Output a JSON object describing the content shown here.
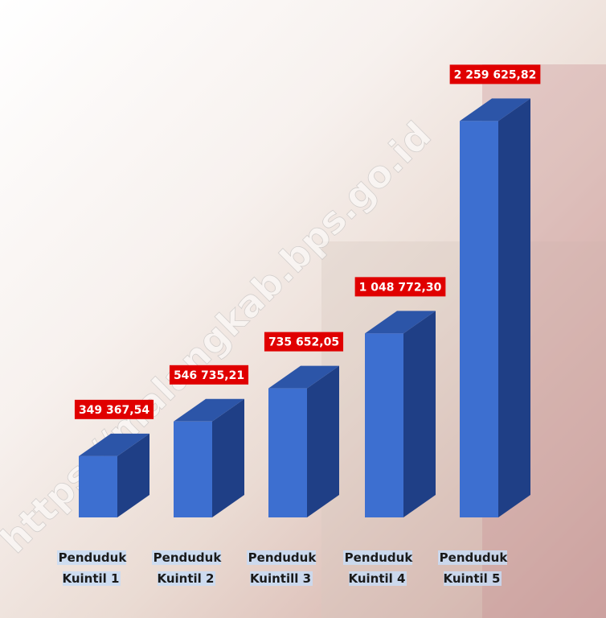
{
  "chart_data": {
    "type": "bar3d",
    "categories": [
      "Penduduk Kuintil 1",
      "Penduduk Kuintil 2",
      "Penduduk Kuintill 3",
      "Penduduk Kuintil 4",
      "Penduduk Kuintil 5"
    ],
    "values": [
      349367.54,
      546735.21,
      735652.05,
      1048772.3,
      2259625.82
    ],
    "value_labels": [
      "349 367,54",
      "546 735,21",
      "735 652,05",
      "1 048 772,30",
      "2 259 625,82"
    ],
    "ylim": [
      0,
      2500000
    ],
    "color": "#3d6fd0",
    "watermark": "https://malangkab.bps.go.id"
  }
}
